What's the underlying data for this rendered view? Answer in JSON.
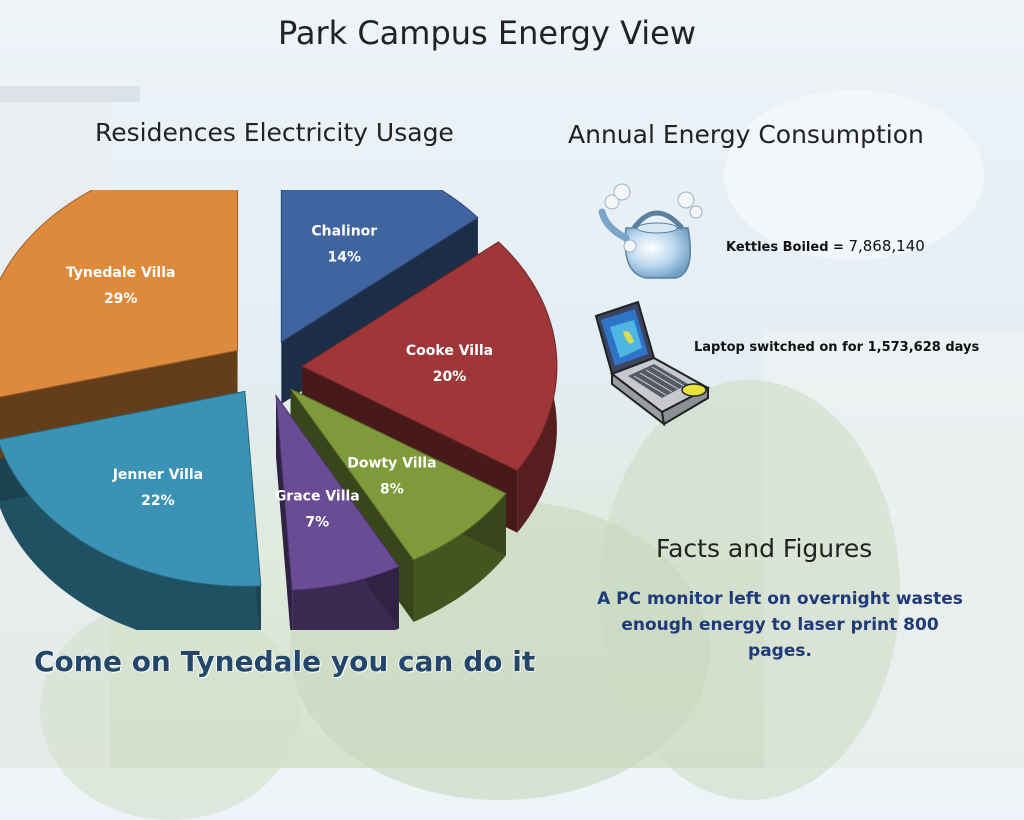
{
  "page": {
    "title": "Park Campus Energy View"
  },
  "chart_data": {
    "type": "pie",
    "title": "Residences Electricity Usage",
    "style": "3d-exploded",
    "slices": [
      {
        "label": "Chalinor",
        "value": 14,
        "display": "14%",
        "color": "#3f64a0"
      },
      {
        "label": "Cooke Villa",
        "value": 20,
        "display": "20%",
        "color": "#9f3739"
      },
      {
        "label": "Dowty Villa",
        "value": 8,
        "display": "8%",
        "color": "#7e9a3b"
      },
      {
        "label": "Grace Villa",
        "value": 7,
        "display": "7%",
        "color": "#6a4c94"
      },
      {
        "label": "Jenner Villa",
        "value": 22,
        "display": "22%",
        "color": "#3a93b4"
      },
      {
        "label": "Tynedale Villa",
        "value": 29,
        "display": "29%",
        "color": "#de8a3c"
      }
    ]
  },
  "energy": {
    "title": "Annual Energy Consumption",
    "kettles_label": "Kettles Boiled = ",
    "kettles_value": "7,868,140",
    "laptop_label": "Laptop switched on for 1,573,628 days",
    "icons": [
      "kettle-icon",
      "laptop-icon"
    ]
  },
  "facts": {
    "title": "Facts and Figures",
    "body": "A PC monitor  left on overnight  wastes enough energy to laser print 800 pages."
  },
  "slogan": "Come on Tynedale you can do it"
}
